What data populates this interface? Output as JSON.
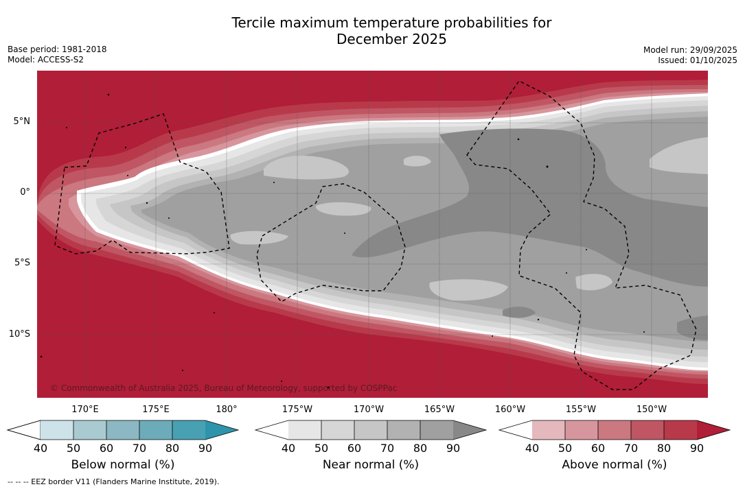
{
  "title_line1": "Tercile maximum temperature probabilities for",
  "title_line2": "December 2025",
  "base_period": "Base period: 1981-2018",
  "model": "Model: ACCESS-S2",
  "model_run": "Model run: 29/09/2025",
  "issued": "Issued: 01/10/2025",
  "copyright": "© Commonwealth of Australia 2025, Bureau of Meteorology, supported by COSPPac",
  "footnote": "--  --  -- EEZ border V11 (Flanders Marine Institute, 2019).",
  "lat_labels": [
    "5°N",
    "0°",
    "5°S",
    "10°S"
  ],
  "lon_labels": [
    "170°E",
    "175°E",
    "180°",
    "175°W",
    "170°W",
    "165°W",
    "160°W",
    "155°W",
    "150°W"
  ],
  "colorbars": [
    {
      "title": "Below normal (%)",
      "ticks": [
        "40",
        "50",
        "60",
        "70",
        "80",
        "90"
      ],
      "colors": [
        "#ffffff",
        "#cde3e9",
        "#a9cad0",
        "#8bb8c2",
        "#6cacba",
        "#48a1b3",
        "#2e94ab"
      ]
    },
    {
      "title": "Near normal (%)",
      "ticks": [
        "40",
        "50",
        "60",
        "70",
        "80",
        "90"
      ],
      "colors": [
        "#ffffff",
        "#e6e6e6",
        "#d6d6d6",
        "#c6c6c6",
        "#b2b2b2",
        "#a0a0a0",
        "#888888"
      ]
    },
    {
      "title": "Above normal (%)",
      "ticks": [
        "40",
        "50",
        "60",
        "70",
        "80",
        "90"
      ],
      "colors": [
        "#ffffff",
        "#e4b8bd",
        "#d7969d",
        "#cb7880",
        "#c05663",
        "#b83a4a",
        "#b01e38"
      ]
    }
  ]
}
